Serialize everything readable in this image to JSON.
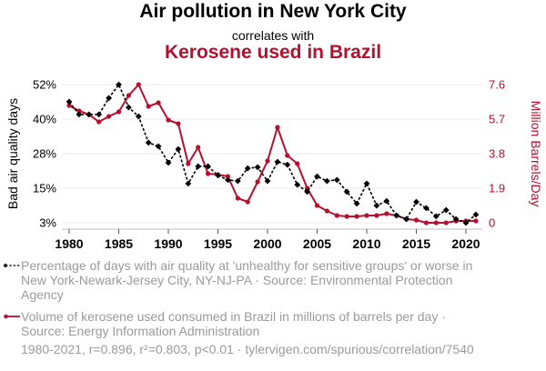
{
  "header": {
    "title": "Air pollution in New York City",
    "subtitle": "correlates with",
    "title2": "Kerosene used in Brazil"
  },
  "colors": {
    "series1": "#000000",
    "series2": "#b7102e",
    "grid": "#ebebeb",
    "legend_text": "#9a9a9a"
  },
  "legend": [
    {
      "text": "Percentage of days with air quality at 'unhealthy for sensitive groups' or worse in New York-Newark-Jersey City, NY-NJ-PA · Source: Environmental Protection Agency"
    },
    {
      "text": "Volume of kerosene used consumed in Brazil in millions of barrels per day · Source: Energy Information Administration"
    }
  ],
  "footer": "1980-2021, r=0.896, r²=0.803, p<0.01 · tylervigen.com/spurious/correlation/7540",
  "chart_data": {
    "type": "line",
    "title": "Air pollution in New York City correlates with Kerosene used in Brazil",
    "xlabel": "",
    "ylabel_left": "Bad air quality days",
    "ylabel_right": "Million Barrels/Day",
    "x": [
      1980,
      1981,
      1982,
      1983,
      1984,
      1985,
      1986,
      1987,
      1988,
      1989,
      1990,
      1991,
      1992,
      1993,
      1994,
      1995,
      1996,
      1997,
      1998,
      1999,
      2000,
      2001,
      2002,
      2003,
      2004,
      2005,
      2006,
      2007,
      2008,
      2009,
      2010,
      2011,
      2012,
      2013,
      2014,
      2015,
      2016,
      2017,
      2018,
      2019,
      2020,
      2021
    ],
    "xlim": [
      1980,
      2021
    ],
    "x_ticks": [
      "1980",
      "1985",
      "1990",
      "1995",
      "2000",
      "2005",
      "2010",
      "2015",
      "2020"
    ],
    "y_left_ticks": [
      "3%",
      "15%",
      "28%",
      "40%",
      "52%"
    ],
    "y_left_lim": [
      3,
      52
    ],
    "y_right_ticks": [
      "0",
      "1.9",
      "3.8",
      "5.7",
      "7.6"
    ],
    "y_right_lim": [
      0,
      7.6
    ],
    "grid": true,
    "legend_position": "bottom",
    "series": [
      {
        "name": "Percentage of days with air quality at 'unhealthy for sensitive groups' or worse in New York-Newark-Jersey City, NY-NJ-PA",
        "axis": "left",
        "style": "dashed-diamond",
        "values": [
          45.9,
          41.4,
          41.4,
          41.4,
          47.2,
          52.0,
          43.9,
          40.7,
          31.4,
          30.1,
          24.3,
          29.1,
          16.9,
          23.0,
          23.0,
          19.8,
          18.2,
          17.8,
          22.3,
          22.7,
          17.8,
          24.6,
          23.6,
          16.5,
          14.0,
          19.4,
          17.8,
          18.2,
          14.0,
          9.8,
          16.9,
          9.1,
          10.7,
          5.6,
          4.3,
          10.4,
          8.2,
          5.3,
          7.5,
          4.3,
          3.0,
          5.9
        ]
      },
      {
        "name": "Volume of kerosene used consumed in Brazil in millions of barrels per day",
        "axis": "right",
        "style": "solid-dot",
        "values": [
          6.45,
          6.15,
          5.95,
          5.55,
          5.85,
          6.1,
          7.0,
          7.6,
          6.4,
          6.6,
          5.65,
          5.45,
          3.25,
          4.15,
          2.7,
          2.65,
          2.55,
          1.35,
          1.15,
          2.25,
          3.4,
          5.25,
          3.7,
          3.25,
          1.9,
          0.95,
          0.65,
          0.4,
          0.35,
          0.35,
          0.4,
          0.4,
          0.5,
          0.4,
          0.2,
          0.15,
          0.0,
          0.0,
          0.0,
          0.1,
          0.1,
          0.1
        ]
      }
    ]
  }
}
